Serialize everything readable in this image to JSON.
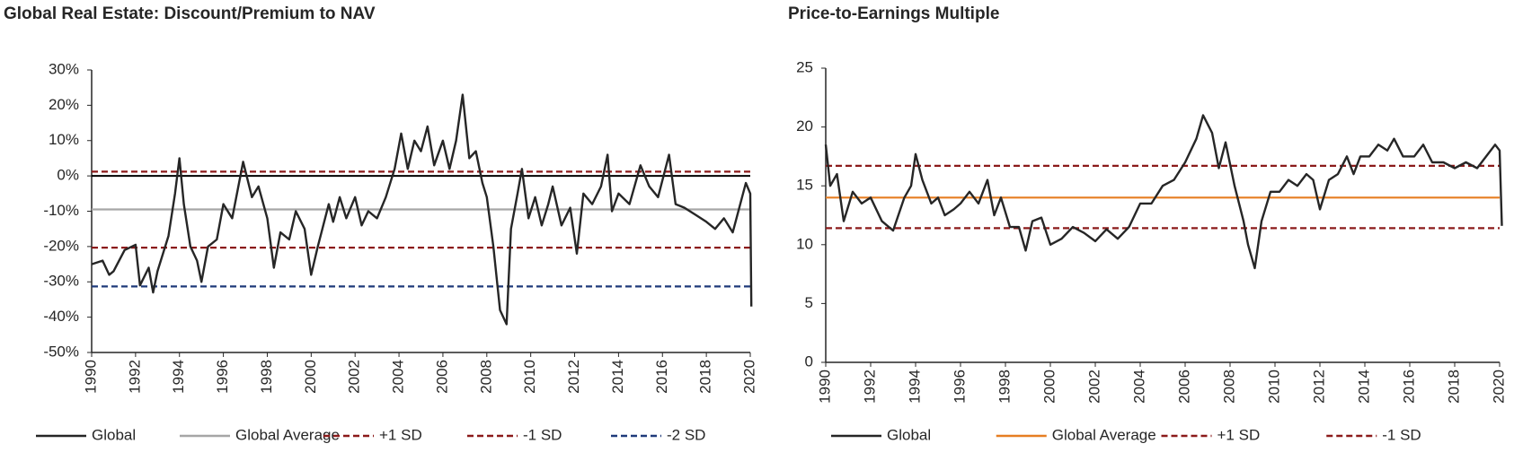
{
  "chart_data": [
    {
      "type": "line",
      "title": "Global Real Estate: Discount/Premium to NAV",
      "xlim": [
        1990,
        2020
      ],
      "xticks": [
        1990,
        1992,
        1994,
        1996,
        1998,
        2000,
        2002,
        2004,
        2006,
        2008,
        2010,
        2012,
        2014,
        2016,
        2018,
        2020
      ],
      "ylim": [
        -50,
        30
      ],
      "yticks": [
        {
          "value": -50,
          "label": "-50%"
        },
        {
          "value": -40,
          "label": "-40%"
        },
        {
          "value": -30,
          "label": "-30%"
        },
        {
          "value": -20,
          "label": "-20%"
        },
        {
          "value": -10,
          "label": "-10%"
        },
        {
          "value": 0,
          "label": "0%"
        },
        {
          "value": 10,
          "label": "10%"
        },
        {
          "value": 20,
          "label": "20%"
        },
        {
          "value": 30,
          "label": "30%"
        }
      ],
      "series": [
        {
          "name": "Global",
          "color": "#262626",
          "dash": false,
          "x": [
            1990,
            1990.5,
            1990.8,
            1991,
            1991.5,
            1992,
            1992.2,
            1992.6,
            1992.8,
            1993,
            1993.5,
            1993.8,
            1994,
            1994.2,
            1994.5,
            1994.8,
            1995,
            1995.3,
            1995.7,
            1996,
            1996.4,
            1996.9,
            1997.3,
            1997.6,
            1998,
            1998.3,
            1998.6,
            1999,
            1999.3,
            1999.7,
            2000,
            2000.3,
            2000.8,
            2001,
            2001.3,
            2001.6,
            2002,
            2002.3,
            2002.6,
            2003,
            2003.4,
            2003.8,
            2004.1,
            2004.4,
            2004.7,
            2005,
            2005.3,
            2005.6,
            2006,
            2006.3,
            2006.6,
            2006.9,
            2007.2,
            2007.5,
            2007.8,
            2008,
            2008.3,
            2008.6,
            2008.9,
            2009.1,
            2009.4,
            2009.6,
            2009.9,
            2010.2,
            2010.5,
            2010.8,
            2011,
            2011.4,
            2011.8,
            2012.1,
            2012.4,
            2012.8,
            2013.2,
            2013.5,
            2013.7,
            2014,
            2014.5,
            2015,
            2015.4,
            2015.8,
            2016.3,
            2016.6,
            2017,
            2017.5,
            2018,
            2018.4,
            2018.8,
            2019.2,
            2019.5,
            2019.8,
            2020,
            2020.05
          ],
          "values": [
            -25,
            -24,
            -28,
            -27,
            -21,
            -19.5,
            -31,
            -26,
            -33,
            -27,
            -17,
            -5,
            5,
            -8,
            -20,
            -24,
            -30,
            -20,
            -18,
            -8,
            -12,
            4,
            -6,
            -3,
            -12,
            -26,
            -16,
            -18,
            -10,
            -15,
            -28,
            -20,
            -8,
            -13,
            -6,
            -12,
            -6,
            -14,
            -10,
            -12,
            -6,
            2,
            12,
            2,
            10,
            7,
            14,
            3,
            10,
            2,
            10,
            23,
            5,
            7,
            -2,
            -6,
            -20,
            -38,
            -42,
            -15,
            -5,
            2,
            -12,
            -6,
            -14,
            -8,
            -3,
            -14,
            -9,
            -22,
            -5,
            -8,
            -3,
            6,
            -10,
            -5,
            -8,
            3,
            -3,
            -6,
            6,
            -8,
            -9,
            -11,
            -13,
            -15,
            -12,
            -16,
            -9,
            -2,
            -5,
            -37
          ]
        },
        {
          "name": "Global Average",
          "color": "#a6a6a6",
          "dash": false,
          "x": [
            1990,
            2020
          ],
          "values": [
            -9.5,
            -9.5
          ]
        },
        {
          "name": "+1 SD",
          "color": "#8b1a1a",
          "dash": true,
          "x": [
            1990,
            2020
          ],
          "values": [
            1.2,
            1.2
          ]
        },
        {
          "name": "-1 SD",
          "color": "#8b1a1a",
          "dash": true,
          "x": [
            1990,
            2020
          ],
          "values": [
            -20.3,
            -20.3
          ]
        },
        {
          "name": "-2 SD",
          "color": "#1f3a7a",
          "dash": true,
          "x": [
            1990,
            2020
          ],
          "values": [
            -31.3,
            -31.3
          ]
        }
      ]
    },
    {
      "type": "line",
      "title": "Price-to-Earnings Multiple",
      "xlim": [
        1990,
        2020
      ],
      "xticks": [
        1990,
        1992,
        1994,
        1996,
        1998,
        2000,
        2002,
        2004,
        2006,
        2008,
        2010,
        2012,
        2014,
        2016,
        2018,
        2020
      ],
      "ylim": [
        0,
        25
      ],
      "yticks": [
        0,
        5,
        10,
        15,
        20,
        25
      ],
      "series": [
        {
          "name": "Global",
          "color": "#262626",
          "dash": false,
          "x": [
            1990,
            1990.2,
            1990.5,
            1990.8,
            1991.2,
            1991.6,
            1992,
            1992.5,
            1993,
            1993.5,
            1993.8,
            1994,
            1994.3,
            1994.7,
            1995,
            1995.3,
            1995.7,
            1996,
            1996.4,
            1996.8,
            1997.2,
            1997.5,
            1997.8,
            1998.2,
            1998.6,
            1998.9,
            1999.2,
            1999.6,
            2000,
            2000.5,
            2001,
            2001.5,
            2002,
            2002.5,
            2003,
            2003.5,
            2004,
            2004.5,
            2005,
            2005.5,
            2006,
            2006.5,
            2006.8,
            2007.2,
            2007.5,
            2007.8,
            2008.2,
            2008.6,
            2008.8,
            2009.1,
            2009.4,
            2009.8,
            2010.2,
            2010.6,
            2011,
            2011.4,
            2011.7,
            2012,
            2012.4,
            2012.8,
            2013.2,
            2013.5,
            2013.8,
            2014.2,
            2014.6,
            2015,
            2015.3,
            2015.7,
            2016.2,
            2016.6,
            2017,
            2017.5,
            2018,
            2018.5,
            2019,
            2019.4,
            2019.8,
            2020,
            2020.1
          ],
          "values": [
            18.5,
            15,
            16,
            12,
            14.5,
            13.5,
            14,
            12,
            11.2,
            14,
            15,
            17.7,
            15.5,
            13.5,
            14,
            12.5,
            13,
            13.5,
            14.5,
            13.5,
            15.5,
            12.5,
            14,
            11.5,
            11.5,
            9.5,
            12,
            12.3,
            10,
            10.5,
            11.5,
            11,
            10.3,
            11.3,
            10.5,
            11.5,
            13.5,
            13.5,
            15,
            15.5,
            17,
            19,
            21,
            19.5,
            16.5,
            18.7,
            15,
            12,
            10,
            8,
            12,
            14.5,
            14.5,
            15.5,
            15,
            16,
            15.5,
            13,
            15.5,
            16,
            17.5,
            16,
            17.5,
            17.5,
            18.5,
            18,
            19,
            17.5,
            17.5,
            18.5,
            17,
            17,
            16.5,
            17,
            16.5,
            17.5,
            18.5,
            18,
            11.6
          ]
        },
        {
          "name": "Global Average",
          "color": "#e67e22",
          "dash": false,
          "x": [
            1990,
            2020
          ],
          "values": [
            14,
            14
          ]
        },
        {
          "name": "+1 SD",
          "color": "#8b1a1a",
          "dash": true,
          "x": [
            1990,
            2020
          ],
          "values": [
            16.7,
            16.7
          ]
        },
        {
          "name": "-1 SD",
          "color": "#8b1a1a",
          "dash": true,
          "x": [
            1990,
            2020
          ],
          "values": [
            11.4,
            11.4
          ]
        }
      ]
    }
  ]
}
